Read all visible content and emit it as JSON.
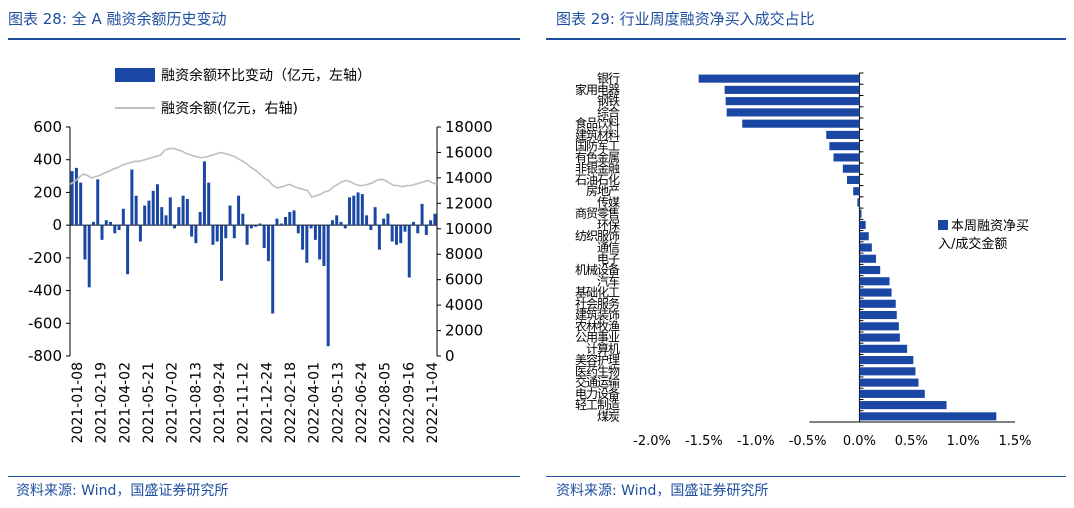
{
  "left": {
    "title": "图表 28:  全 A 融资余额历史变动",
    "source": "资料来源:  Wind，国盛证券研究所",
    "chart_data": {
      "type": "bar+line",
      "legend": [
        {
          "label": "融资余额环比变动（亿元，左轴）",
          "color": "#1a47a4"
        },
        {
          "label": "融资余额(亿元，右轴)",
          "color": "#bfbfbf"
        }
      ],
      "y_left": {
        "min": -800,
        "max": 600,
        "ticks": [
          600,
          400,
          200,
          0,
          -200,
          -400,
          -600,
          -800
        ]
      },
      "y_right": {
        "min": 0,
        "max": 18000,
        "ticks": [
          18000,
          16000,
          14000,
          12000,
          10000,
          8000,
          6000,
          4000,
          2000,
          0
        ]
      },
      "x_tick_labels": [
        "2021-01-08",
        "2021-02-19",
        "2021-04-02",
        "2021-05-21",
        "2021-07-02",
        "2021-08-13",
        "2021-09-24",
        "2021-11-12",
        "2021-12-24",
        "2022-02-18",
        "2022-04-01",
        "2022-05-13",
        "2022-06-24",
        "2022-08-05",
        "2022-09-16",
        "2022-11-04"
      ],
      "bar_values": [
        330,
        350,
        260,
        -210,
        -380,
        20,
        280,
        -90,
        30,
        20,
        -50,
        -30,
        100,
        -300,
        340,
        180,
        -100,
        120,
        150,
        210,
        250,
        110,
        60,
        170,
        -20,
        110,
        180,
        160,
        -70,
        -110,
        80,
        390,
        260,
        -120,
        -100,
        -340,
        -80,
        120,
        -80,
        180,
        70,
        -120,
        -20,
        -10,
        10,
        -140,
        -220,
        -540,
        40,
        10,
        50,
        80,
        90,
        -50,
        -150,
        -230,
        -20,
        -90,
        -210,
        -250,
        -740,
        30,
        60,
        20,
        -20,
        170,
        180,
        200,
        190,
        60,
        -30,
        110,
        -150,
        40,
        70,
        -100,
        -120,
        -110,
        -40,
        -320,
        20,
        -50,
        130,
        -60,
        30,
        70
      ],
      "line_values": [
        13500,
        13700,
        14000,
        14300,
        14200,
        14000,
        14100,
        14200,
        14400,
        14500,
        14700,
        14800,
        15000,
        15100,
        15200,
        15300,
        15300,
        15400,
        15500,
        15600,
        15700,
        15800,
        16200,
        16300,
        16300,
        16200,
        16100,
        15900,
        15800,
        15700,
        15600,
        15600,
        15700,
        15800,
        15900,
        16000,
        15900,
        15800,
        15700,
        15500,
        15300,
        15100,
        14800,
        14600,
        14300,
        14000,
        13800,
        13400,
        13200,
        13300,
        13400,
        13500,
        13300,
        13200,
        13100,
        13000,
        12500,
        12600,
        12700,
        12900,
        13000,
        13300,
        13500,
        13700,
        13800,
        13700,
        13500,
        13400,
        13400,
        13500,
        13600,
        13800,
        13900,
        13800,
        13600,
        13400,
        13400,
        13300,
        13400,
        13400,
        13500,
        13600,
        13700,
        13800,
        13600,
        13500
      ]
    }
  },
  "right": {
    "title": "图表 29:  行业周度融资净买入成交占比",
    "source": "资料来源:  Wind，国盛证券研究所",
    "chart_data": {
      "type": "horizontal-bar",
      "legend": [
        {
          "label": "本周融资净买入/成交金额",
          "color": "#1a47a4"
        }
      ],
      "x_range": [
        -2.0,
        1.5
      ],
      "x_tick_labels": [
        "-2.0%",
        "-1.5%",
        "-1.0%",
        "-0.5%",
        "0.0%",
        "0.5%",
        "1.0%",
        "1.5%"
      ],
      "unit": "%",
      "categories": [
        "银行",
        "家用电器",
        "钢铁",
        "综合",
        "食品饮料",
        "建筑材料",
        "国防军工",
        "有色金属",
        "非银金融",
        "石油石化",
        "房地产",
        "传媒",
        "商贸零售",
        "环保",
        "纺织服饰",
        "通信",
        "电子",
        "机械设备",
        "汽车",
        "基础化工",
        "社会服务",
        "建筑装饰",
        "农林牧渔",
        "公用事业",
        "计算机",
        "美容护理",
        "医药生物",
        "交通运输",
        "电力设备",
        "轻工制造",
        "煤炭"
      ],
      "values": [
        -1.55,
        -1.3,
        -1.29,
        -1.28,
        -1.13,
        -0.32,
        -0.29,
        -0.25,
        -0.16,
        -0.12,
        -0.06,
        -0.02,
        0.02,
        0.06,
        0.09,
        0.12,
        0.16,
        0.2,
        0.29,
        0.31,
        0.35,
        0.36,
        0.38,
        0.39,
        0.46,
        0.52,
        0.54,
        0.57,
        0.63,
        0.84,
        1.32
      ]
    }
  }
}
